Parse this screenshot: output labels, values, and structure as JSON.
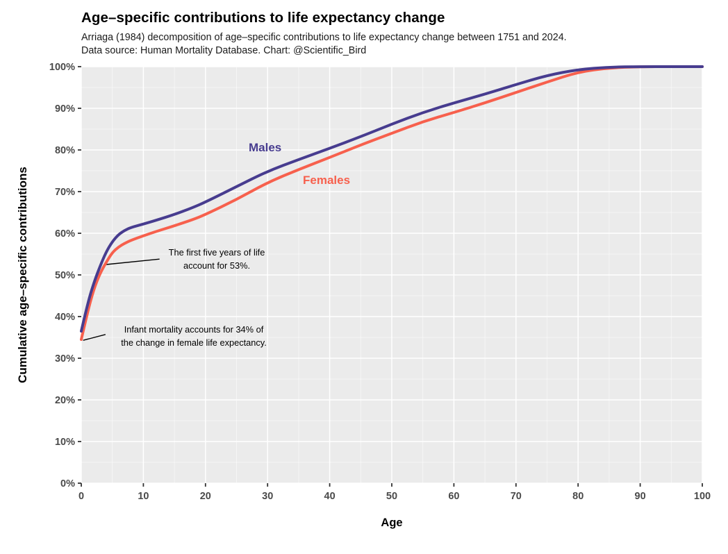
{
  "header": {
    "title": "Age–specific contributions to life expectancy change",
    "subtitle_line1": "Arriaga (1984) decomposition of age–specific contributions to life expectancy change between 1751 and 2024.",
    "subtitle_line2": "Data source: Human Mortality Database. Chart: @Scientific_Bird"
  },
  "chart_data": {
    "type": "line",
    "title": "Age–specific contributions to life expectancy change",
    "xlabel": "Age",
    "ylabel": "Cumulative age–specific contributions",
    "xlim": [
      0,
      100
    ],
    "ylim": [
      0,
      100
    ],
    "x_ticks": [
      0,
      10,
      20,
      30,
      40,
      50,
      60,
      70,
      80,
      90,
      100
    ],
    "y_ticks": [
      0,
      10,
      20,
      30,
      40,
      50,
      60,
      70,
      80,
      90,
      100
    ],
    "y_tick_suffix": "%",
    "grid": {
      "major_every": 10,
      "minor_every": 5,
      "style": "white-on-gray"
    },
    "legend": "direct-labels-on-lines",
    "x": [
      0,
      1,
      2,
      3,
      4,
      5,
      6,
      7,
      8,
      10,
      12,
      15,
      18,
      20,
      25,
      30,
      35,
      40,
      45,
      50,
      55,
      60,
      65,
      70,
      75,
      80,
      85,
      90,
      95,
      100
    ],
    "series": [
      {
        "name": "Males",
        "color": "#473C8F",
        "values": [
          36.5,
          43,
          48,
          52,
          55.5,
          58,
          59.7,
          60.7,
          61.4,
          62.2,
          63.1,
          64.5,
          66.2,
          67.5,
          71.2,
          74.9,
          77.7,
          80.4,
          83.2,
          86.2,
          89,
          91.3,
          93.4,
          95.7,
          97.9,
          99.3,
          99.9,
          100,
          100,
          100
        ]
      },
      {
        "name": "Females",
        "color": "#F7604D",
        "values": [
          34.5,
          41,
          46.5,
          50.3,
          53,
          55.4,
          56.7,
          57.6,
          58.3,
          59.4,
          60.4,
          61.8,
          63.3,
          64.5,
          68.1,
          72.2,
          75.3,
          78.2,
          81.2,
          84,
          86.8,
          89,
          91.3,
          93.8,
          96.3,
          98.7,
          99.7,
          100,
          100,
          100
        ]
      }
    ]
  },
  "annotations": {
    "first_five": {
      "line1": "The first five years of life",
      "line2": "account for 53%.",
      "leader": {
        "from_age": 4.0,
        "from_pct": 52.5,
        "to_age": 12.6,
        "to_pct": 53.8
      }
    },
    "infant": {
      "line1": "Infant mortality accounts for 34% of",
      "line2": "the change in female life expectancy.",
      "leader": {
        "from_age": 0.3,
        "from_pct": 34.3,
        "to_age": 3.9,
        "to_pct": 35.7
      }
    }
  },
  "theme": {
    "panel_bg": "#EBEBEB",
    "grid_major": "#FFFFFF",
    "grid_minor": "#FFFFFF",
    "tick_color": "#333333",
    "tick_label_color": "#4A4A4A",
    "annotation_color": "#000000"
  }
}
